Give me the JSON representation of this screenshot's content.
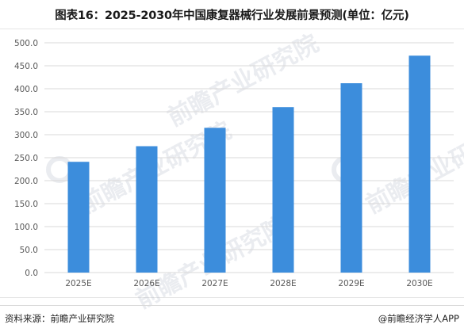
{
  "title": "图表16：2025-2030年中国康复器械行业发展前景预测(单位：亿元)",
  "footer": {
    "source": "资料来源：前瞻产业研究院",
    "brand": "@前瞻经济学人APP"
  },
  "watermark": "前瞻产业研究院",
  "colors": {
    "bar": "#3c8ddc",
    "grid": "#d9d9d9",
    "axis_text": "#595959"
  },
  "chart_data": {
    "type": "bar",
    "title": "图表16：2025-2030年中国康复器械行业发展前景预测(单位：亿元)",
    "categories": [
      "2025E",
      "2026E",
      "2027E",
      "2028E",
      "2029E",
      "2030E"
    ],
    "values": [
      241,
      275,
      315,
      360,
      412,
      472
    ],
    "ylim": [
      0,
      500
    ],
    "yticks": [
      "0.0",
      "50.0",
      "100.0",
      "150.0",
      "200.0",
      "250.0",
      "300.0",
      "350.0",
      "400.0",
      "450.0",
      "500.0"
    ],
    "xlabel": "",
    "ylabel": "",
    "grid": true,
    "legend": "none"
  }
}
